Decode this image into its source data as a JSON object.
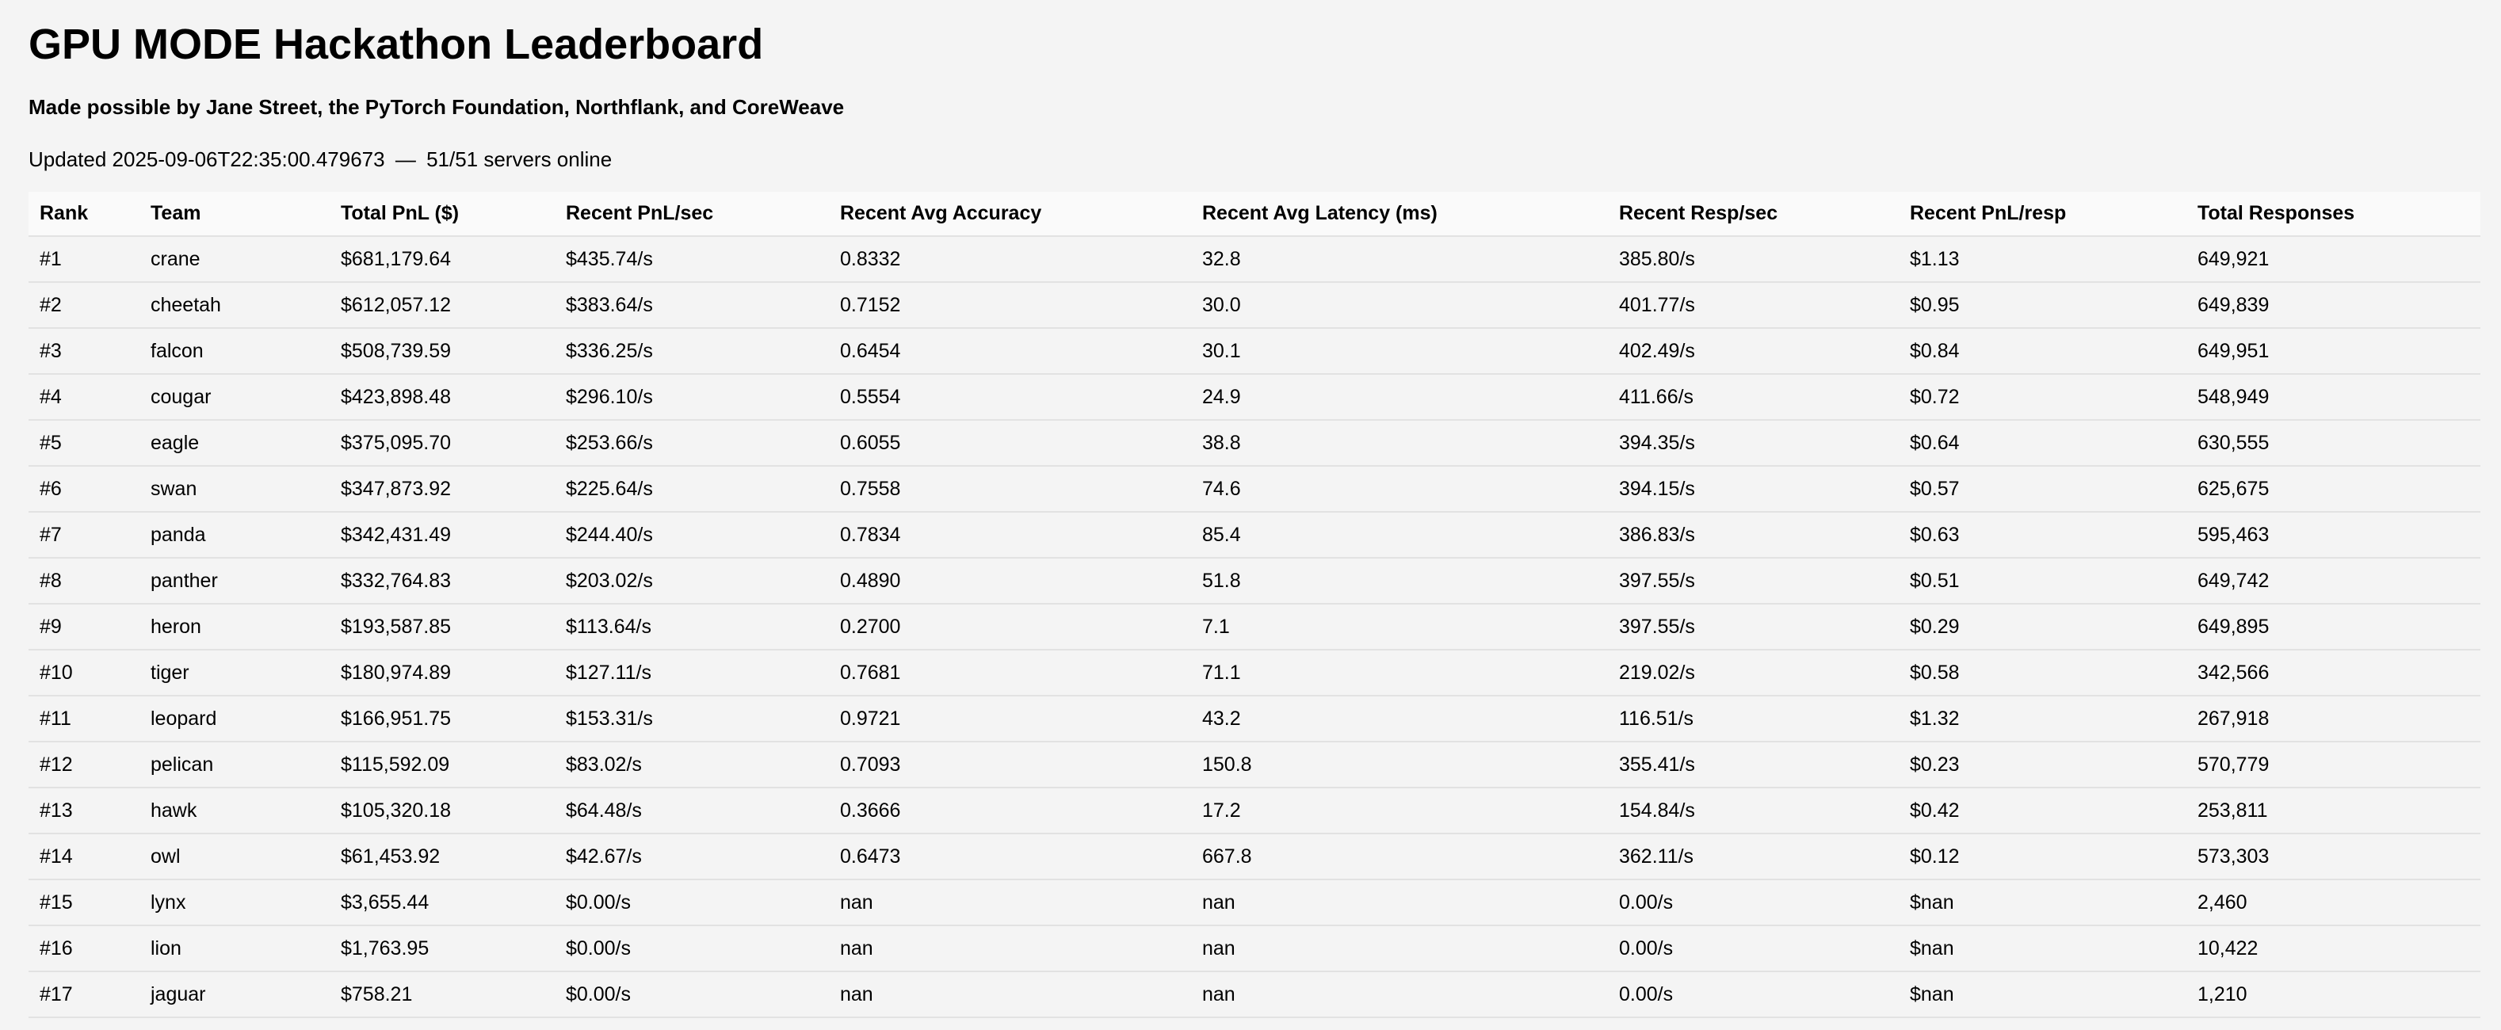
{
  "page": {
    "title": "GPU MODE Hackathon Leaderboard",
    "subtitle": "Made possible by Jane Street, the PyTorch Foundation, Northflank, and CoreWeave",
    "updated_label": "Updated 2025-09-06T22:35:00.479673",
    "separator": "—",
    "servers_status": "51/51 servers online"
  },
  "table": {
    "columns": [
      "Rank",
      "Team",
      "Total PnL ($)",
      "Recent PnL/sec",
      "Recent Avg Accuracy",
      "Recent Avg Latency (ms)",
      "Recent Resp/sec",
      "Recent PnL/resp",
      "Total Responses"
    ],
    "rows": [
      [
        "#1",
        "crane",
        "$681,179.64",
        "$435.74/s",
        "0.8332",
        "32.8",
        "385.80/s",
        "$1.13",
        "649,921"
      ],
      [
        "#2",
        "cheetah",
        "$612,057.12",
        "$383.64/s",
        "0.7152",
        "30.0",
        "401.77/s",
        "$0.95",
        "649,839"
      ],
      [
        "#3",
        "falcon",
        "$508,739.59",
        "$336.25/s",
        "0.6454",
        "30.1",
        "402.49/s",
        "$0.84",
        "649,951"
      ],
      [
        "#4",
        "cougar",
        "$423,898.48",
        "$296.10/s",
        "0.5554",
        "24.9",
        "411.66/s",
        "$0.72",
        "548,949"
      ],
      [
        "#5",
        "eagle",
        "$375,095.70",
        "$253.66/s",
        "0.6055",
        "38.8",
        "394.35/s",
        "$0.64",
        "630,555"
      ],
      [
        "#6",
        "swan",
        "$347,873.92",
        "$225.64/s",
        "0.7558",
        "74.6",
        "394.15/s",
        "$0.57",
        "625,675"
      ],
      [
        "#7",
        "panda",
        "$342,431.49",
        "$244.40/s",
        "0.7834",
        "85.4",
        "386.83/s",
        "$0.63",
        "595,463"
      ],
      [
        "#8",
        "panther",
        "$332,764.83",
        "$203.02/s",
        "0.4890",
        "51.8",
        "397.55/s",
        "$0.51",
        "649,742"
      ],
      [
        "#9",
        "heron",
        "$193,587.85",
        "$113.64/s",
        "0.2700",
        "7.1",
        "397.55/s",
        "$0.29",
        "649,895"
      ],
      [
        "#10",
        "tiger",
        "$180,974.89",
        "$127.11/s",
        "0.7681",
        "71.1",
        "219.02/s",
        "$0.58",
        "342,566"
      ],
      [
        "#11",
        "leopard",
        "$166,951.75",
        "$153.31/s",
        "0.9721",
        "43.2",
        "116.51/s",
        "$1.32",
        "267,918"
      ],
      [
        "#12",
        "pelican",
        "$115,592.09",
        "$83.02/s",
        "0.7093",
        "150.8",
        "355.41/s",
        "$0.23",
        "570,779"
      ],
      [
        "#13",
        "hawk",
        "$105,320.18",
        "$64.48/s",
        "0.3666",
        "17.2",
        "154.84/s",
        "$0.42",
        "253,811"
      ],
      [
        "#14",
        "owl",
        "$61,453.92",
        "$42.67/s",
        "0.6473",
        "667.8",
        "362.11/s",
        "$0.12",
        "573,303"
      ],
      [
        "#15",
        "lynx",
        "$3,655.44",
        "$0.00/s",
        "nan",
        "nan",
        "0.00/s",
        "$nan",
        "2,460"
      ],
      [
        "#16",
        "lion",
        "$1,763.95",
        "$0.00/s",
        "nan",
        "nan",
        "0.00/s",
        "$nan",
        "10,422"
      ],
      [
        "#17",
        "jaguar",
        "$758.21",
        "$0.00/s",
        "nan",
        "nan",
        "0.00/s",
        "$nan",
        "1,210"
      ]
    ]
  }
}
